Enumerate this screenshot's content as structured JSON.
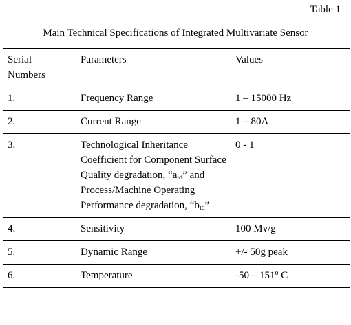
{
  "table_label": "Table 1",
  "caption": "Main Technical Specifications of Integrated Multivariate Sensor",
  "headers": {
    "serial": "Serial Numbers",
    "parameters": "Parameters",
    "values": "Values"
  },
  "rows": [
    {
      "serial": "1.",
      "parameter": "Frequency Range",
      "value": "1 – 15000 Hz"
    },
    {
      "serial": "2.",
      "parameter": "Current Range",
      "value": "1 – 80A"
    },
    {
      "serial": "3.",
      "parameter_parts": {
        "p1": "Technological Inheritance Coefficient for Component Surface Quality degradation, “a",
        "sub1": "id",
        "p2": "” and Process/Machine Operating Performance degradation, “b",
        "sub2": "id",
        "p3": "”"
      },
      "value": "0 - 1"
    },
    {
      "serial": "4.",
      "parameter": "Sensitivity",
      "value": "100 Mv/g"
    },
    {
      "serial": "5.",
      "parameter": "Dynamic Range",
      "value": "+/- 50g peak"
    },
    {
      "serial": "6.",
      "parameter": "Temperature",
      "value_parts": {
        "v1": "-50 – 151",
        "sup": "o",
        "v2": " C"
      }
    }
  ]
}
